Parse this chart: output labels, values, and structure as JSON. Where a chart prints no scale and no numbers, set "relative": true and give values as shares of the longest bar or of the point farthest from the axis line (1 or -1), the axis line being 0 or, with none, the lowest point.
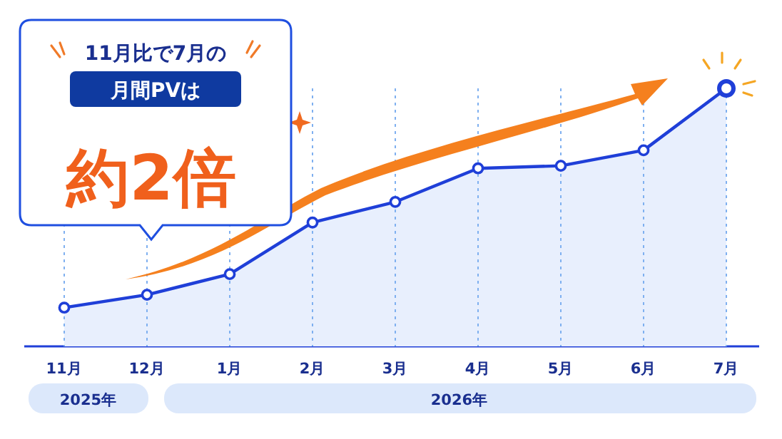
{
  "chart_data": {
    "type": "area",
    "relative": true,
    "categories": [
      "11月",
      "12月",
      "1月",
      "2月",
      "3月",
      "4月",
      "5月",
      "6月",
      "7月"
    ],
    "series": [
      {
        "color": "#1f3fd8",
        "values": [
          0.15,
          0.2,
          0.28,
          0.48,
          0.56,
          0.69,
          0.7,
          0.76,
          1
        ]
      }
    ],
    "marker": "circle",
    "grid": "x",
    "annotations": [
      "11月比で7月の",
      "月間PVは",
      "約2倍",
      "2025年",
      "2026年"
    ]
  }
}
